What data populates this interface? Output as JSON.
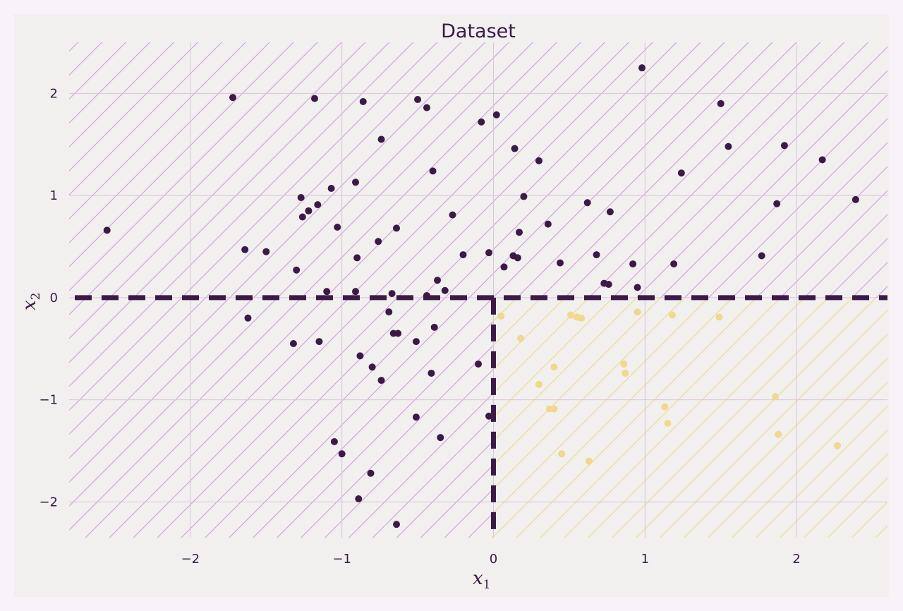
{
  "colors": {
    "page_bg": "#f8f3f8",
    "figure_bg": "#f1f0ef",
    "grid": "#dcc3dc",
    "class_0_hatch": "#d39ddd",
    "class_1_hatch": "#f0d88c",
    "class_0_point": "#3b1a45",
    "class_1_point": "#f0d88c",
    "boundary": "#3b1a45",
    "text": "#3b1a45"
  },
  "chart_data": {
    "type": "scatter",
    "title": "Dataset",
    "xlabel": {
      "base": "x",
      "sub": "1"
    },
    "ylabel": {
      "base": "x",
      "sub": "2"
    },
    "xlim": [
      -2.8,
      2.6
    ],
    "ylim": [
      -2.35,
      2.5
    ],
    "xticks": [
      -2,
      -1,
      0,
      1,
      2
    ],
    "yticks": [
      -2,
      -1,
      0,
      1,
      2
    ],
    "xtick_labels": [
      "−2",
      "−1",
      "0",
      "1",
      "2"
    ],
    "ytick_labels": [
      "−2",
      "−1",
      "0",
      "1",
      "2"
    ],
    "grid": true,
    "decision_boundary": {
      "x": 0,
      "y": 0
    },
    "regions": [
      {
        "class": 0,
        "description": "everything except x1>0, x2<0"
      },
      {
        "class": 1,
        "x": [
          0,
          2.6
        ],
        "y": [
          -2.35,
          0
        ]
      }
    ],
    "series": [
      {
        "class": 0,
        "points": [
          [
            -2.55,
            0.66
          ],
          [
            -1.72,
            1.96
          ],
          [
            -1.18,
            1.95
          ],
          [
            -0.86,
            1.92
          ],
          [
            -0.5,
            1.94
          ],
          [
            -0.44,
            1.86
          ],
          [
            -0.08,
            1.72
          ],
          [
            0.02,
            1.79
          ],
          [
            0.98,
            2.25
          ],
          [
            1.5,
            1.9
          ],
          [
            1.55,
            1.48
          ],
          [
            1.92,
            1.49
          ],
          [
            2.17,
            1.35
          ],
          [
            2.39,
            0.96
          ],
          [
            1.87,
            0.92
          ],
          [
            1.24,
            1.22
          ],
          [
            -0.74,
            1.55
          ],
          [
            -0.4,
            1.24
          ],
          [
            0.14,
            1.46
          ],
          [
            0.3,
            1.34
          ],
          [
            -1.27,
            0.98
          ],
          [
            -1.07,
            1.07
          ],
          [
            -0.91,
            1.13
          ],
          [
            -1.16,
            0.91
          ],
          [
            -1.22,
            0.85
          ],
          [
            -1.26,
            0.79
          ],
          [
            -1.03,
            0.69
          ],
          [
            -0.27,
            0.81
          ],
          [
            0.2,
            0.99
          ],
          [
            0.17,
            0.64
          ],
          [
            0.36,
            0.72
          ],
          [
            0.62,
            0.93
          ],
          [
            0.77,
            0.84
          ],
          [
            -0.76,
            0.55
          ],
          [
            -0.64,
            0.68
          ],
          [
            -1.64,
            0.47
          ],
          [
            -1.5,
            0.45
          ],
          [
            -1.3,
            0.27
          ],
          [
            -0.9,
            0.39
          ],
          [
            -0.2,
            0.42
          ],
          [
            -0.03,
            0.44
          ],
          [
            0.13,
            0.41
          ],
          [
            0.16,
            0.39
          ],
          [
            0.07,
            0.3
          ],
          [
            0.44,
            0.34
          ],
          [
            0.68,
            0.42
          ],
          [
            0.73,
            0.14
          ],
          [
            0.76,
            0.13
          ],
          [
            0.92,
            0.33
          ],
          [
            0.95,
            0.1
          ],
          [
            1.19,
            0.33
          ],
          [
            1.77,
            0.41
          ],
          [
            -1.1,
            0.06
          ],
          [
            -0.91,
            0.06
          ],
          [
            -0.67,
            0.04
          ],
          [
            -0.44,
            0.02
          ],
          [
            -0.37,
            0.17
          ],
          [
            -0.32,
            0.07
          ],
          [
            -1.62,
            -0.2
          ],
          [
            -1.32,
            -0.45
          ],
          [
            -1.15,
            -0.43
          ],
          [
            -0.69,
            -0.14
          ],
          [
            -0.66,
            -0.35
          ],
          [
            -0.63,
            -0.35
          ],
          [
            -0.51,
            -0.43
          ],
          [
            -0.39,
            -0.29
          ],
          [
            -0.1,
            -0.65
          ],
          [
            -0.88,
            -0.57
          ],
          [
            -0.8,
            -0.68
          ],
          [
            -0.74,
            -0.81
          ],
          [
            -0.41,
            -0.74
          ],
          [
            -0.51,
            -1.17
          ],
          [
            -0.35,
            -1.37
          ],
          [
            -0.03,
            -1.16
          ],
          [
            -1.05,
            -1.41
          ],
          [
            -1.0,
            -1.53
          ],
          [
            -0.81,
            -1.72
          ],
          [
            -0.89,
            -1.97
          ],
          [
            -0.64,
            -2.22
          ]
        ]
      },
      {
        "class": 1,
        "points": [
          [
            0.05,
            -0.18
          ],
          [
            0.18,
            -0.4
          ],
          [
            0.51,
            -0.17
          ],
          [
            0.55,
            -0.19
          ],
          [
            0.58,
            -0.2
          ],
          [
            0.95,
            -0.14
          ],
          [
            1.18,
            -0.17
          ],
          [
            1.49,
            -0.19
          ],
          [
            0.4,
            -0.68
          ],
          [
            0.3,
            -0.85
          ],
          [
            0.86,
            -0.65
          ],
          [
            0.87,
            -0.74
          ],
          [
            0.37,
            -1.09
          ],
          [
            0.4,
            -1.09
          ],
          [
            0.45,
            -1.53
          ],
          [
            0.63,
            -1.6
          ],
          [
            1.13,
            -1.07
          ],
          [
            1.15,
            -1.23
          ],
          [
            1.86,
            -0.97
          ],
          [
            1.88,
            -1.34
          ],
          [
            2.27,
            -1.45
          ]
        ]
      }
    ]
  }
}
